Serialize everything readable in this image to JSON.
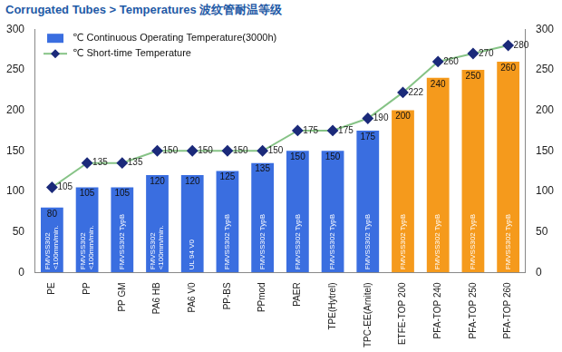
{
  "chart_data": {
    "type": "bar",
    "title": "Corrugated Tubes > Temperatures 波纹管耐温等级",
    "categories": [
      "PE",
      "PP",
      "PP GM",
      "PA6 HB",
      "PA6 V0",
      "PP-BS",
      "PPmod",
      "PAER",
      "TPE(Hytrel)",
      "TPC-EE(Arnitel)",
      "ETFE-TOP 200",
      "PFA-TOP 240",
      "PFA-TOP 250",
      "PFA-TOP 260"
    ],
    "series": [
      {
        "name": "℃ Continuous Operating Temperature(3000h)",
        "type": "bar",
        "colors": [
          "#3a6ee0",
          "#3a6ee0",
          "#3a6ee0",
          "#3a6ee0",
          "#3a6ee0",
          "#3a6ee0",
          "#3a6ee0",
          "#3a6ee0",
          "#3a6ee0",
          "#3a6ee0",
          "#f59a1c",
          "#f59a1c",
          "#f59a1c",
          "#f59a1c"
        ],
        "values": [
          80,
          105,
          105,
          120,
          120,
          125,
          135,
          150,
          150,
          175,
          200,
          240,
          250,
          260
        ],
        "bar_texts": [
          [
            "FMVSS302",
            "<100mm/min."
          ],
          [
            "FMVSS302",
            "<100mm/min."
          ],
          [
            "FMVSS302 TypB"
          ],
          [
            "FMVSS302",
            "<100mm/min."
          ],
          [
            "UL 94 V0"
          ],
          [
            "FMVSS302 TypB"
          ],
          [
            "FMVSS302 TypB"
          ],
          [
            "FMVSS302 TypB"
          ],
          [
            "FMVSS302 TypB"
          ],
          [
            "FMVSS302 TypB"
          ],
          [
            "FMVSS302 TypB"
          ],
          [
            "FMVSS302 TypB"
          ],
          [
            "FMVSS302 TypB"
          ],
          [
            "FMVSS302 TypB"
          ]
        ]
      },
      {
        "name": "℃ Short-time Temperature",
        "type": "line",
        "color": "#86c386",
        "marker": "diamond",
        "values": [
          105,
          135,
          135,
          150,
          150,
          150,
          150,
          175,
          175,
          190,
          222,
          260,
          270,
          280
        ]
      }
    ],
    "ylim": [
      0,
      300
    ],
    "yticks": [
      0,
      50,
      100,
      150,
      200,
      250,
      300
    ],
    "y2lim": [
      0,
      300
    ],
    "y2ticks": [
      0,
      50,
      100,
      150,
      200,
      250,
      300
    ],
    "grid": false,
    "legend": "upper left",
    "data_labels": true
  }
}
